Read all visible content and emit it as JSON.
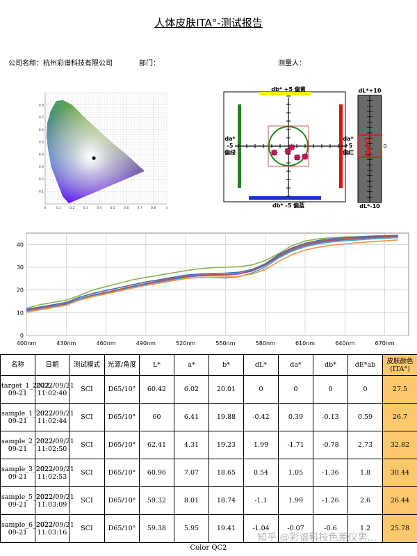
{
  "report": {
    "title": "人体皮肤ITA°-测试报告",
    "company_label": "公司名称：杭州彩谱科技有限公司",
    "department_label": "部门：",
    "measurer_label": "测量人：",
    "footer": "Color QC2",
    "watermark": "知乎 @彩谱科技色差仪男..."
  },
  "cie_chart": {
    "x_ticks": [
      "0",
      "0.1",
      "0.2",
      "0.3",
      "0.4",
      "0.5",
      "0.6",
      "0.7",
      "0.8",
      "x"
    ],
    "y_ticks": [
      "0.8",
      "0.7",
      "0.6",
      "0.5",
      "0.4",
      "0.3",
      "0.2",
      "0.1"
    ],
    "point": {
      "x": 0.36,
      "y": 0.37
    }
  },
  "diff_chart": {
    "top_label": "db* +5  偏黄",
    "bottom_label": "db* -5  偏蓝",
    "left_label_1": "da*",
    "left_label_2": "-5",
    "left_label_3": "偏绿",
    "right_label_1": "da*",
    "right_label_2": "+5",
    "right_label_3": "偏红",
    "dl_top": "dL*+10",
    "dl_bottom": "dL*-10",
    "dl_zero": "0",
    "samples": [
      {
        "da": 0.39,
        "db": -0.13
      },
      {
        "da": -1.71,
        "db": -0.78
      },
      {
        "da": 1.05,
        "db": -1.36
      },
      {
        "da": 1.99,
        "db": -1.26
      },
      {
        "da": -0.07,
        "db": -0.6
      }
    ],
    "dl_values": [
      -0.42,
      1.99,
      0.54,
      -1.1,
      -1.04
    ]
  },
  "chart_data": {
    "type": "line",
    "x": [
      400,
      410,
      420,
      430,
      440,
      450,
      460,
      470,
      480,
      490,
      500,
      510,
      520,
      530,
      540,
      550,
      560,
      570,
      580,
      590,
      600,
      610,
      620,
      630,
      640,
      650,
      660,
      670,
      680
    ],
    "x_tick_labels": [
      "400nm",
      "430nm",
      "460nm",
      "490nm",
      "520nm",
      "550nm",
      "580nm",
      "610nm",
      "640nm",
      "670nm"
    ],
    "x_ticks": [
      400,
      430,
      460,
      490,
      520,
      550,
      580,
      610,
      640,
      670
    ],
    "y_ticks": [
      0,
      10,
      20,
      30,
      40
    ],
    "ylim": [
      0,
      45
    ],
    "xlim": [
      400,
      688
    ],
    "series": [
      {
        "color": "#8fb24c",
        "values": [
          12,
          13.5,
          14.5,
          15.5,
          17.5,
          20,
          21.5,
          23,
          24.5,
          25.5,
          26.5,
          27.5,
          28.5,
          29.3,
          29.8,
          30,
          30.2,
          31,
          33,
          36,
          39.5,
          41.5,
          42.5,
          43,
          43.3,
          43.5,
          43.7,
          43.9,
          44
        ]
      },
      {
        "color": "#3d6fb5",
        "values": [
          11.5,
          12.5,
          13.5,
          14.5,
          16.8,
          18.5,
          19.8,
          21,
          22.3,
          23.5,
          24.5,
          25.5,
          26.5,
          27,
          27.2,
          27.4,
          27.8,
          29,
          31.5,
          35.5,
          38.5,
          40.5,
          41.8,
          42.5,
          43,
          43.3,
          43.6,
          43.8,
          44
        ]
      },
      {
        "color": "#c0504d",
        "values": [
          11,
          12,
          13,
          14,
          16.2,
          17.8,
          19,
          20.3,
          21.6,
          22.8,
          24,
          25,
          26,
          26.5,
          26.7,
          26.8,
          27.2,
          28.5,
          31,
          35,
          38,
          40,
          41.3,
          42,
          42.5,
          42.9,
          43.2,
          43.5,
          43.7
        ]
      },
      {
        "color": "#7e5fa0",
        "values": [
          10.8,
          11.8,
          12.8,
          13.8,
          16,
          17.5,
          18.7,
          20,
          21.3,
          22.5,
          23.7,
          24.7,
          25.7,
          26.2,
          26.4,
          26.5,
          27,
          28.3,
          30.8,
          34.5,
          37.5,
          39.5,
          40.8,
          41.6,
          42.1,
          42.5,
          42.9,
          43.2,
          43.4
        ]
      },
      {
        "color": "#4bacc6",
        "values": [
          10.5,
          11.5,
          12.5,
          13.5,
          15.8,
          17.2,
          18.5,
          19.8,
          21,
          22.2,
          23.3,
          24.3,
          25.2,
          25.5,
          25.5,
          25.3,
          25.8,
          27.5,
          30,
          34,
          37,
          39,
          40.3,
          41.1,
          41.6,
          42,
          42.4,
          42.7,
          43
        ]
      },
      {
        "color": "#f79646",
        "values": [
          10.2,
          11.2,
          12.2,
          13.2,
          15.5,
          17,
          18.2,
          19.5,
          20.8,
          22,
          23,
          24,
          25,
          25.5,
          25.6,
          25.7,
          26,
          27,
          29,
          32.5,
          35.5,
          37.5,
          38.8,
          39.7,
          40.3,
          40.8,
          41.2,
          41.6,
          42
        ]
      }
    ]
  },
  "table": {
    "headers": [
      "名称",
      "日期",
      "测试模式",
      "光源/角度",
      "L*",
      "a*",
      "b*",
      "dL*",
      "da*",
      "db*",
      "dE*ab",
      "皮肤颜色(ITA°)"
    ],
    "rows": [
      {
        "name": "target_1_2022-09-21",
        "date": "2022/09/21 11:02:40",
        "mode": "SCI",
        "illum": "D65/10°",
        "L": "60.42",
        "a": "6.02",
        "b": "20.01",
        "dL": "0",
        "da": "0",
        "db": "0",
        "dE": "0",
        "ita": "27.5"
      },
      {
        "name": "sample_1_2022-09-21",
        "date": "2022/09/21 11:02:44",
        "mode": "SCI",
        "illum": "D65/10°",
        "L": "60",
        "a": "6.41",
        "b": "19.88",
        "dL": "-0.42",
        "da": "0.39",
        "db": "-0.13",
        "dE": "0.59",
        "ita": "26.7"
      },
      {
        "name": "sample_2_2022-09-21",
        "date": "2022/09/21 11:02:50",
        "mode": "SCI",
        "illum": "D65/10°",
        "L": "62.41",
        "a": "4.31",
        "b": "19.23",
        "dL": "1.99",
        "da": "-1.71",
        "db": "-0.78",
        "dE": "2.73",
        "ita": "32.82"
      },
      {
        "name": "sample_3_2022-09-21",
        "date": "2022/09/21 11:02:53",
        "mode": "SCI",
        "illum": "D65/10°",
        "L": "60.96",
        "a": "7.07",
        "b": "18.65",
        "dL": "0.54",
        "da": "1.05",
        "db": "-1.36",
        "dE": "1.8",
        "ita": "30.44"
      },
      {
        "name": "sample_5_2022-09-21",
        "date": "2022/09/21 11:03:09",
        "mode": "SCI",
        "illum": "D65/10°",
        "L": "59.32",
        "a": "8.01",
        "b": "18.74",
        "dL": "-1.1",
        "da": "1.99",
        "db": "-1.26",
        "dE": "2.6",
        "ita": "26.44"
      },
      {
        "name": "sample_6_2022-09-21",
        "date": "2022/09/21 11:03:16",
        "mode": "SCI",
        "illum": "D65/10°",
        "L": "59.38",
        "a": "5.95",
        "b": "19.41",
        "dL": "-1.04",
        "da": "-0.07",
        "db": "-0.6",
        "dE": "1.2",
        "ita": "25.78"
      }
    ]
  }
}
